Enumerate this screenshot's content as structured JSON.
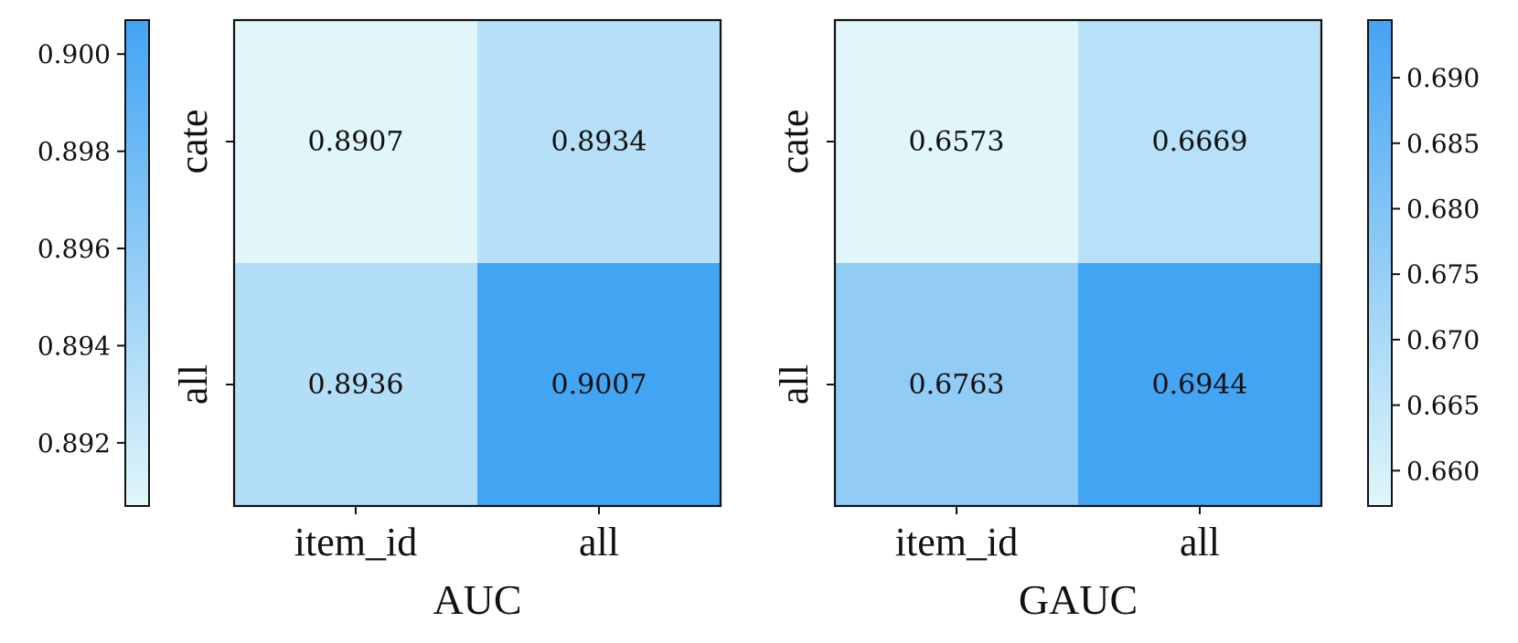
{
  "chart_data": [
    {
      "type": "heatmap",
      "title": "",
      "xlabel": "AUC",
      "ylabel": "",
      "x_categories": [
        "item_id",
        "all"
      ],
      "y_categories": [
        "cate",
        "all"
      ],
      "values": [
        [
          0.8907,
          0.8934
        ],
        [
          0.8936,
          0.9007
        ]
      ],
      "cell_labels": [
        [
          "0.8907",
          "0.8934"
        ],
        [
          "0.8936",
          "0.9007"
        ]
      ],
      "colorbar": {
        "position": "left",
        "range": [
          0.8907,
          0.9007
        ],
        "ticks": [
          0.892,
          0.894,
          0.896,
          0.898,
          0.9
        ],
        "tick_labels": [
          "0.892",
          "0.894",
          "0.896",
          "0.898",
          "0.900"
        ]
      },
      "colormap": {
        "low": "#e0f6f9",
        "high": "#43a4f4"
      }
    },
    {
      "type": "heatmap",
      "title": "",
      "xlabel": "GAUC",
      "ylabel": "",
      "x_categories": [
        "item_id",
        "all"
      ],
      "y_categories": [
        "cate",
        "all"
      ],
      "values": [
        [
          0.6573,
          0.6669
        ],
        [
          0.6763,
          0.6944
        ]
      ],
      "cell_labels": [
        [
          "0.6573",
          "0.6669"
        ],
        [
          "0.6763",
          "0.6944"
        ]
      ],
      "colorbar": {
        "position": "right",
        "range": [
          0.6573,
          0.6944
        ],
        "ticks": [
          0.66,
          0.665,
          0.67,
          0.675,
          0.68,
          0.685,
          0.69
        ],
        "tick_labels": [
          "0.660",
          "0.665",
          "0.670",
          "0.675",
          "0.680",
          "0.685",
          "0.690"
        ]
      },
      "colormap": {
        "low": "#e0f6f9",
        "high": "#43a4f4"
      }
    }
  ]
}
